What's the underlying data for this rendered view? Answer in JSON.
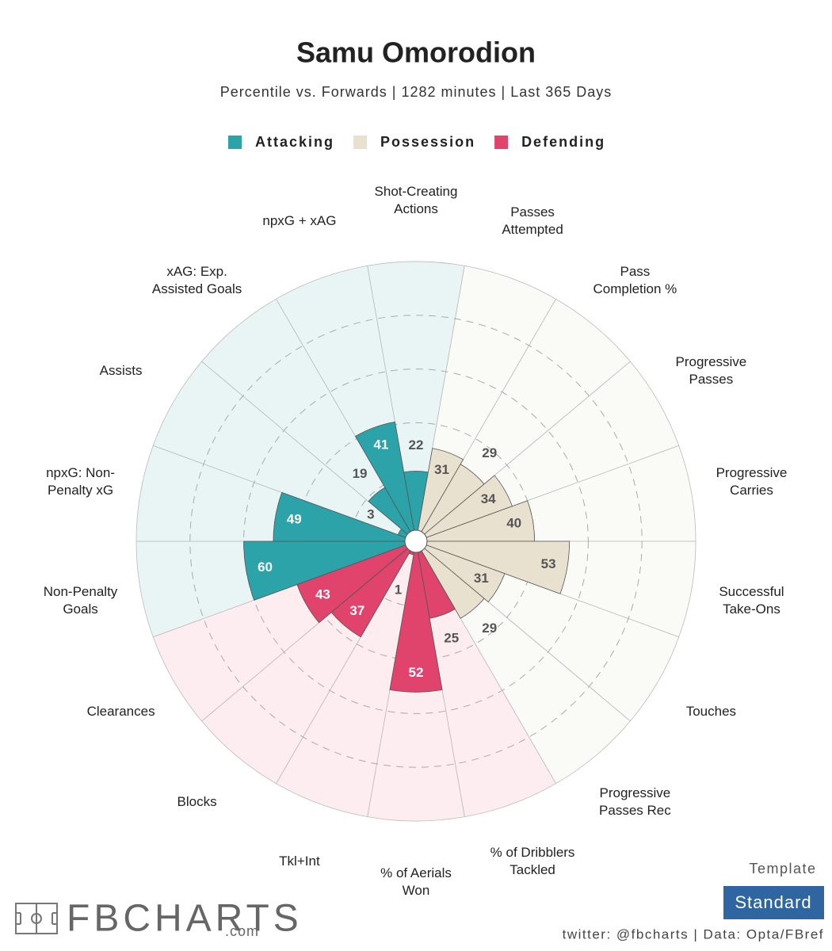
{
  "chart_data": {
    "type": "polar-bar",
    "title": "Samu Omorodion",
    "subtitle": "Percentile vs. Forwards | 1282 minutes | Last 365 Days",
    "series": [
      {
        "name": "Attacking",
        "color": "#2ba3a9",
        "background": "#e9f5f5",
        "categories": [
          "Non-Penalty Goals",
          "npxG: Non-Penalty xG",
          "Assists",
          "xAG: Exp. Assisted Goals",
          "npxG + xAG",
          "Shot-Creating Actions"
        ],
        "values": [
          60,
          49,
          3,
          19,
          41,
          22
        ]
      },
      {
        "name": "Possession",
        "color": "#e8e1cf",
        "background": "#fafaf7",
        "categories": [
          "Passes Attempted",
          "Pass Completion %",
          "Progressive Passes",
          "Progressive Carries",
          "Successful Take-Ons",
          "Touches",
          "Progressive Passes Rec"
        ],
        "values": [
          31,
          29,
          34,
          40,
          53,
          31,
          29
        ]
      },
      {
        "name": "Defending",
        "color": "#e0436b",
        "background": "#fdecf0",
        "categories": [
          "% of Dribblers Tackled",
          "% of Aerials Won",
          "Tkl+Int",
          "Blocks",
          "Clearances"
        ],
        "values": [
          25,
          52,
          1,
          37,
          43
        ]
      }
    ],
    "rlim": [
      0,
      100
    ],
    "rticks": [
      20,
      40,
      60,
      80
    ],
    "template_label": "Template",
    "template": "Standard",
    "logo": "FBCHARTS",
    "logo_suffix": ".com",
    "footer": "twitter: @fbcharts | Data: Opta/FBref"
  }
}
